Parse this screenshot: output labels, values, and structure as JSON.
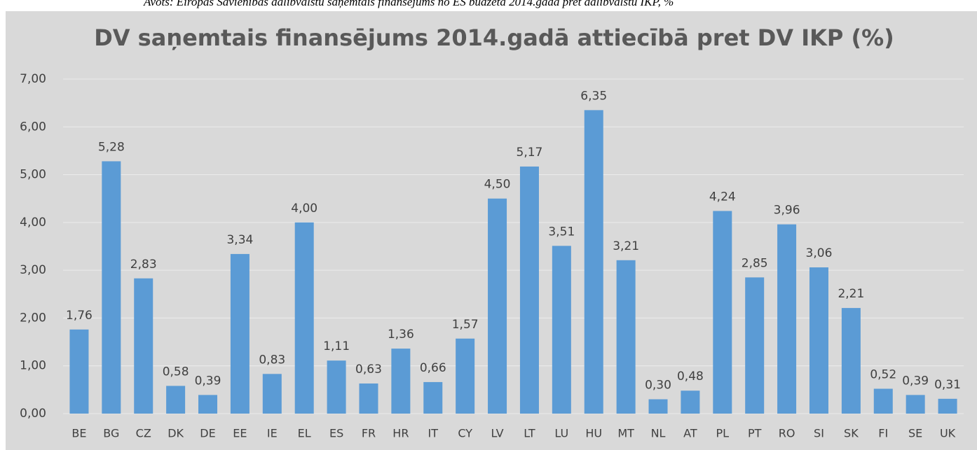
{
  "caption": "Avots: Eiropas Savienības dalībvalstu saņemtais finansējums no ES budžeta 2014.gadā pret dalībvalstu IKP, %",
  "chart_data": {
    "type": "bar",
    "title": "DV saņemtais finansējums 2014.gadā attiecībā pret DV IKP (%)",
    "categories": [
      "BE",
      "BG",
      "CZ",
      "DK",
      "DE",
      "EE",
      "IE",
      "EL",
      "ES",
      "FR",
      "HR",
      "IT",
      "CY",
      "LV",
      "LT",
      "LU",
      "HU",
      "MT",
      "NL",
      "AT",
      "PL",
      "PT",
      "RO",
      "SI",
      "SK",
      "FI",
      "SE",
      "UK"
    ],
    "values": [
      1.76,
      5.28,
      2.83,
      0.58,
      0.39,
      3.34,
      0.83,
      4.0,
      1.11,
      0.63,
      1.36,
      0.66,
      1.57,
      4.5,
      5.17,
      3.51,
      6.35,
      3.21,
      0.3,
      0.48,
      4.24,
      2.85,
      3.96,
      3.06,
      2.21,
      0.52,
      0.39,
      0.31
    ],
    "value_labels": [
      "1,76",
      "5,28",
      "2,83",
      "0,58",
      "0,39",
      "3,34",
      "0,83",
      "4,00",
      "1,11",
      "0,63",
      "1,36",
      "0,66",
      "1,57",
      "4,50",
      "5,17",
      "3,51",
      "6,35",
      "3,21",
      "0,30",
      "0,48",
      "4,24",
      "2,85",
      "3,96",
      "3,06",
      "2,21",
      "0,52",
      "0,39",
      "0,31"
    ],
    "color": "#5b9bd5",
    "ylim": [
      0,
      7
    ],
    "yticks": [
      {
        "value": 0,
        "label": "0,00"
      },
      {
        "value": 1,
        "label": "1,00"
      },
      {
        "value": 2,
        "label": "2,00"
      },
      {
        "value": 3,
        "label": "3,00"
      },
      {
        "value": 4,
        "label": "4,00"
      },
      {
        "value": 5,
        "label": "5,00"
      },
      {
        "value": 6,
        "label": "6,00"
      },
      {
        "value": 7,
        "label": "7,00"
      }
    ],
    "grid": true
  }
}
